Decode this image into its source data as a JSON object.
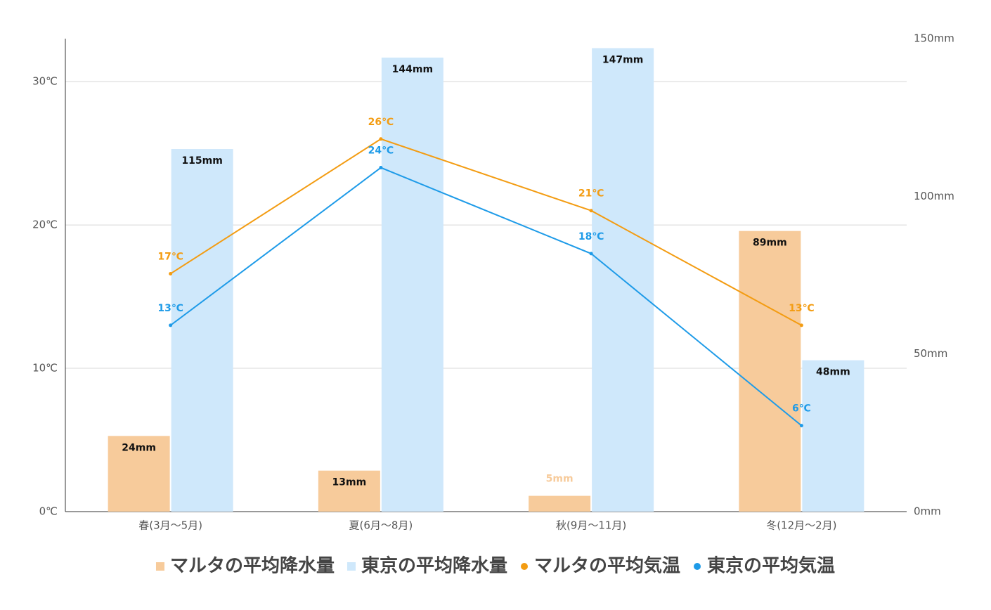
{
  "chart_data": {
    "type": "bar",
    "categories": [
      "春(3月～5月)",
      "夏(6月～8月)",
      "秋(9月～11月)",
      "冬(12月～2月)"
    ],
    "series": [
      {
        "name": "マルタの平均降水量",
        "type": "bar",
        "axis": "y2",
        "color": "#f7cb9b",
        "values": [
          24,
          13,
          5,
          89
        ],
        "value_labels": [
          "24mm",
          "13mm",
          "5mm",
          "89mm"
        ]
      },
      {
        "name": "東京の平均降水量",
        "type": "bar",
        "axis": "y2",
        "color": "#cfe8fb",
        "values": [
          115,
          144,
          147,
          48
        ],
        "value_labels": [
          "115mm",
          "144mm",
          "147mm",
          "48mm"
        ]
      },
      {
        "name": "マルタの平均気温",
        "type": "line",
        "color": "#f39c12",
        "values": [
          16.6,
          26,
          21,
          13
        ],
        "value_labels": [
          "17℃",
          "26℃",
          "21℃",
          "13℃"
        ]
      },
      {
        "name": "東京の平均気温",
        "type": "line",
        "color": "#1e9be8",
        "values": [
          13,
          24,
          18,
          6
        ],
        "value_labels": [
          "13℃",
          "24℃",
          "18℃",
          "6℃"
        ]
      }
    ],
    "ylim": [
      0,
      33
    ],
    "yticks": [
      {
        "value": 0,
        "label": "0℃"
      },
      {
        "value": 10,
        "label": "10℃"
      },
      {
        "value": 20,
        "label": "20℃"
      },
      {
        "value": 30,
        "label": "30℃"
      }
    ],
    "y2lim": [
      0,
      150
    ],
    "y2ticks": [
      {
        "value": 0,
        "label": "0mm"
      },
      {
        "value": 50,
        "label": "50mm"
      },
      {
        "value": 100,
        "label": "100mm"
      },
      {
        "value": 150,
        "label": "150mm"
      }
    ],
    "grid": true,
    "legend": "bottom"
  }
}
